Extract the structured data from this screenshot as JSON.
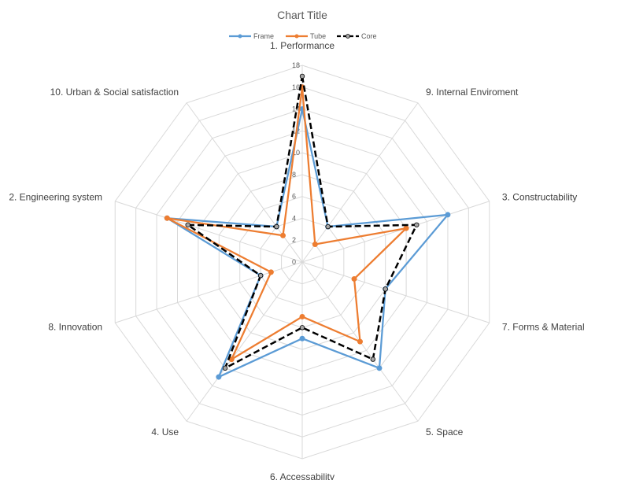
{
  "chart_data": {
    "type": "radar",
    "title": "Chart Title",
    "categories": [
      "1. Performance",
      "9. Internal Enviroment",
      "3. Constructability",
      "7. Forms & Material",
      "5. Space",
      "6. Accessability",
      "4. Use",
      "8. Innovation",
      "2. Engineering system",
      "10. Urban & Social satisfaction"
    ],
    "r_ticks": [
      0,
      2,
      4,
      6,
      8,
      10,
      12,
      14,
      16,
      18
    ],
    "rlim": [
      0,
      18
    ],
    "legend_position": "top",
    "grid": true,
    "series": [
      {
        "name": "Frame",
        "color": "#5B9BD5",
        "style": "solid",
        "values": [
          14,
          4,
          14,
          8,
          12,
          7,
          13,
          4,
          13,
          4
        ]
      },
      {
        "name": "Tube",
        "color": "#ED7D31",
        "style": "solid",
        "values": [
          16,
          2,
          10,
          5,
          9,
          5,
          11,
          3,
          13,
          3
        ]
      },
      {
        "name": "Core",
        "color": "#000000",
        "style": "dashed",
        "values": [
          17,
          4,
          11,
          8,
          11,
          6,
          12,
          4,
          11,
          4
        ]
      }
    ]
  }
}
